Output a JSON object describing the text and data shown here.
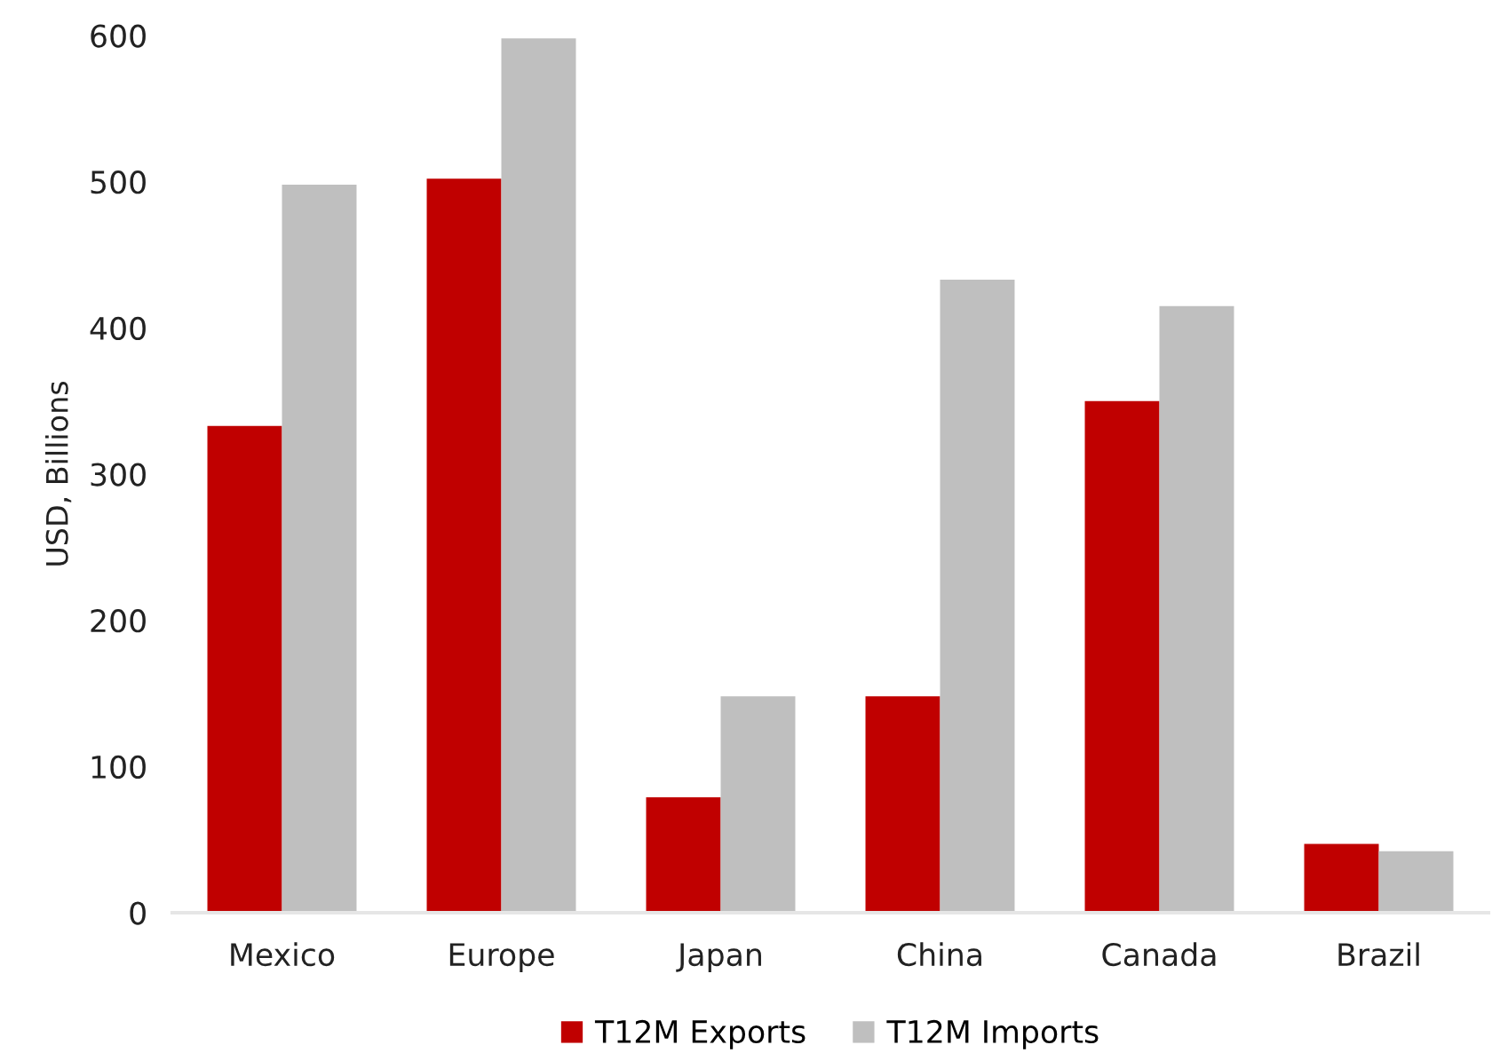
{
  "chart_data": {
    "type": "bar",
    "categories": [
      "Mexico",
      "Europe",
      "Japan",
      "China",
      "Canada",
      "Brazil"
    ],
    "series": [
      {
        "name": "T12M Exports",
        "color": "#c00000",
        "values": [
          333,
          502,
          79,
          148,
          350,
          47
        ]
      },
      {
        "name": "T12M Imports",
        "color": "#bfbfbf",
        "values": [
          498,
          598,
          148,
          433,
          415,
          42
        ]
      }
    ],
    "ylabel": "USD, Billions",
    "ylim": [
      0,
      600
    ],
    "yticks": [
      0,
      100,
      200,
      300,
      400,
      500,
      600
    ],
    "grid": false,
    "legend": "bottom"
  }
}
